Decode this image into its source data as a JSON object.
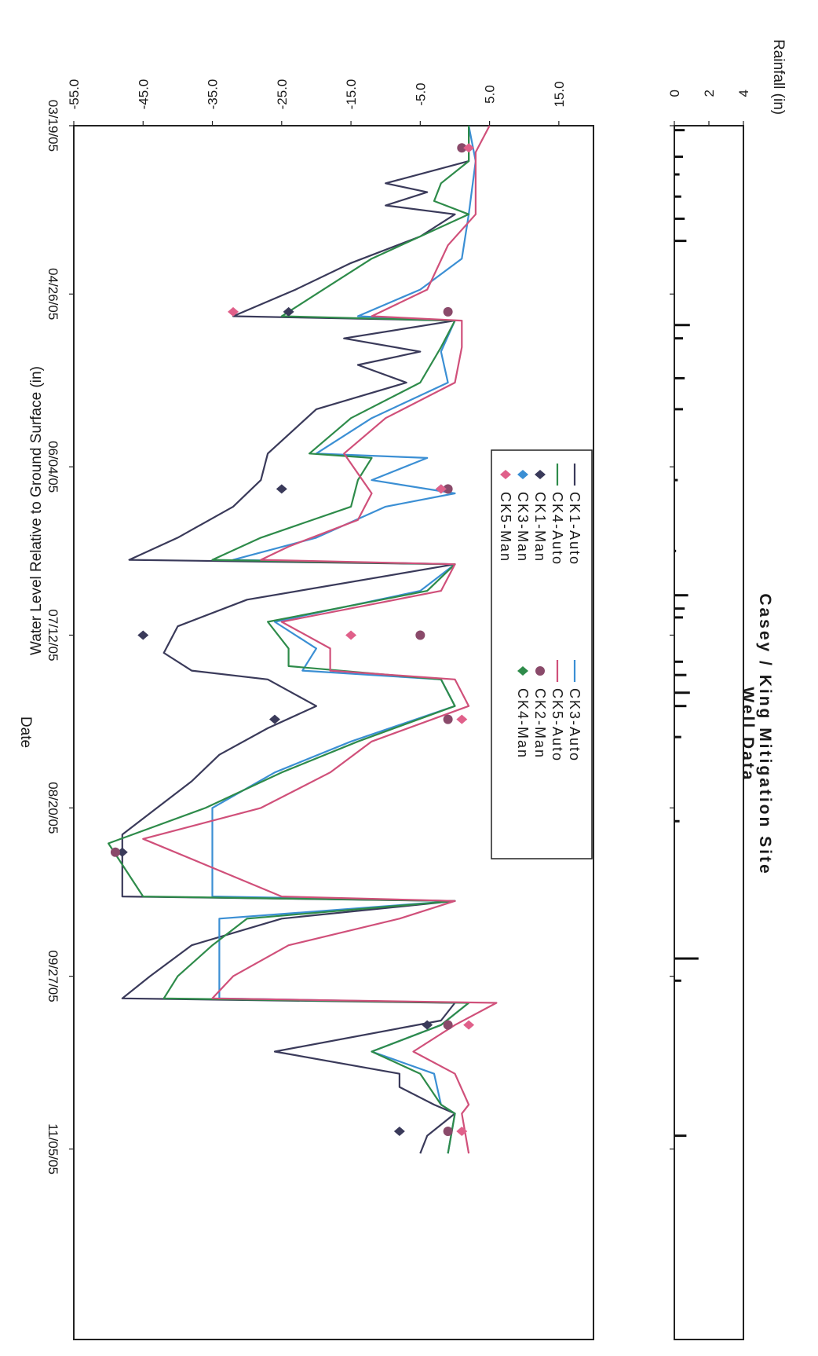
{
  "chart_data": [
    {
      "type": "bar",
      "title": "Casey / King Mitigation Site",
      "subtitle": "Well Data",
      "ylabel": "Rainfall (in)",
      "ylim": [
        0,
        4
      ],
      "yticks": [
        0,
        2,
        4
      ],
      "xlim": [
        "2005-03-19",
        "2005-12-18"
      ],
      "bars": [
        {
          "date": "2005-03-20",
          "value": 0.6
        },
        {
          "date": "2005-03-26",
          "value": 0.5
        },
        {
          "date": "2005-03-30",
          "value": 0.3
        },
        {
          "date": "2005-04-04",
          "value": 0.4
        },
        {
          "date": "2005-04-09",
          "value": 0.6
        },
        {
          "date": "2005-04-14",
          "value": 0.7
        },
        {
          "date": "2005-05-03",
          "value": 0.9
        },
        {
          "date": "2005-05-06",
          "value": 0.5
        },
        {
          "date": "2005-05-15",
          "value": 0.6
        },
        {
          "date": "2005-05-22",
          "value": 0.5
        },
        {
          "date": "2005-06-07",
          "value": 0.2
        },
        {
          "date": "2005-06-23",
          "value": 0.1
        },
        {
          "date": "2005-07-03",
          "value": 0.8
        },
        {
          "date": "2005-07-06",
          "value": 0.6
        },
        {
          "date": "2005-07-08",
          "value": 0.5
        },
        {
          "date": "2005-07-18",
          "value": 0.5
        },
        {
          "date": "2005-07-21",
          "value": 0.7
        },
        {
          "date": "2005-07-25",
          "value": 0.9
        },
        {
          "date": "2005-07-28",
          "value": 0.7
        },
        {
          "date": "2005-08-04",
          "value": 0.4
        },
        {
          "date": "2005-08-23",
          "value": 0.3
        },
        {
          "date": "2005-09-23",
          "value": 1.4
        },
        {
          "date": "2005-09-28",
          "value": 0.4
        },
        {
          "date": "2005-11-02",
          "value": 0.7
        }
      ]
    },
    {
      "type": "line",
      "xlabel": "Date",
      "ylabel": "Water Level Relative to Ground Surface (in)",
      "ylim": [
        -55.0,
        20.0
      ],
      "yticks": [
        "-55.0",
        "-45.0",
        "-35.0",
        "-25.0",
        "-15.0",
        "-5.0",
        "5.0",
        "15.0"
      ],
      "xlim": [
        "2005-03-19",
        "2005-12-18"
      ],
      "xticks": [
        "03/19/05",
        "04/26/05",
        "06/04/05",
        "07/12/05",
        "08/20/05",
        "09/27/05",
        "11/05/05"
      ],
      "legend_position": "center-right",
      "series": [
        {
          "name": "CK1-Auto",
          "color": "#3a3a5a",
          "points": [
            [
              "2005-03-19",
              2
            ],
            [
              "2005-03-27",
              2
            ],
            [
              "2005-04-01",
              -10
            ],
            [
              "2005-04-03",
              -4
            ],
            [
              "2005-04-06",
              -10
            ],
            [
              "2005-04-08",
              0
            ],
            [
              "2005-04-13",
              -5
            ],
            [
              "2005-04-19",
              -15
            ],
            [
              "2005-04-25",
              -23
            ],
            [
              "2005-05-01",
              -32
            ],
            [
              "2005-05-02",
              0
            ],
            [
              "2005-05-06",
              -16
            ],
            [
              "2005-05-09",
              -5
            ],
            [
              "2005-05-12",
              -14
            ],
            [
              "2005-05-16",
              -7
            ],
            [
              "2005-05-22",
              -20
            ],
            [
              "2005-06-01",
              -27
            ],
            [
              "2005-06-07",
              -28
            ],
            [
              "2005-06-13",
              -32
            ],
            [
              "2005-06-20",
              -40
            ],
            [
              "2005-06-25",
              -47
            ],
            [
              "2005-06-26",
              0
            ],
            [
              "2005-07-04",
              -30
            ],
            [
              "2005-07-10",
              -40
            ],
            [
              "2005-07-16",
              -42
            ],
            [
              "2005-07-20",
              -38
            ],
            [
              "2005-07-22",
              -27
            ],
            [
              "2005-07-28",
              -20
            ],
            [
              "2005-08-02",
              -27
            ],
            [
              "2005-08-08",
              -34
            ],
            [
              "2005-08-14",
              -38
            ],
            [
              "2005-08-20",
              -43
            ],
            [
              "2005-08-26",
              -48
            ],
            [
              "2005-09-09",
              -48
            ],
            [
              "2005-09-10",
              0
            ],
            [
              "2005-09-14",
              -25
            ],
            [
              "2005-09-20",
              -38
            ],
            [
              "2005-09-27",
              -44
            ],
            [
              "2005-10-02",
              -48
            ],
            [
              "2005-10-03",
              0
            ],
            [
              "2005-10-07",
              -2
            ],
            [
              "2005-10-14",
              -26
            ],
            [
              "2005-10-19",
              -8
            ],
            [
              "2005-10-22",
              -8
            ],
            [
              "2005-10-26",
              -3
            ],
            [
              "2005-10-28",
              0
            ],
            [
              "2005-11-02",
              -4
            ],
            [
              "2005-11-06",
              -5
            ]
          ]
        },
        {
          "name": "CK3-Auto",
          "color": "#3b8fd4",
          "points": [
            [
              "2005-03-19",
              2
            ],
            [
              "2005-03-27",
              3
            ],
            [
              "2005-04-08",
              2
            ],
            [
              "2005-04-18",
              1
            ],
            [
              "2005-04-25",
              -5
            ],
            [
              "2005-05-01",
              -14
            ],
            [
              "2005-05-02",
              0
            ],
            [
              "2005-05-09",
              -2
            ],
            [
              "2005-05-16",
              -1
            ],
            [
              "2005-05-24",
              -12
            ],
            [
              "2005-06-01",
              -20
            ],
            [
              "2005-06-02",
              -4
            ],
            [
              "2005-06-07",
              -12
            ],
            [
              "2005-06-10",
              0
            ],
            [
              "2005-06-13",
              -10
            ],
            [
              "2005-06-20",
              -20
            ],
            [
              "2005-06-25",
              -32
            ],
            [
              "2005-06-26",
              0
            ],
            [
              "2005-07-02",
              -5
            ],
            [
              "2005-07-09",
              -26
            ],
            [
              "2005-07-15",
              -20
            ],
            [
              "2005-07-20",
              -22
            ],
            [
              "2005-07-22",
              -2
            ],
            [
              "2005-07-28",
              0
            ],
            [
              "2005-08-05",
              -15
            ],
            [
              "2005-08-12",
              -26
            ],
            [
              "2005-08-20",
              -35
            ],
            [
              "2005-09-09",
              -35
            ],
            [
              "2005-09-10",
              0
            ],
            [
              "2005-09-14",
              -34
            ],
            [
              "2005-10-02",
              -34
            ],
            [
              "2005-10-03",
              2
            ],
            [
              "2005-10-08",
              -2
            ],
            [
              "2005-10-14",
              -12
            ],
            [
              "2005-10-19",
              -3
            ],
            [
              "2005-10-26",
              -2
            ],
            [
              "2005-10-28",
              0
            ],
            [
              "2005-11-06",
              -1
            ]
          ]
        },
        {
          "name": "CK4-Auto",
          "color": "#2e8b4a",
          "points": [
            [
              "2005-03-19",
              2
            ],
            [
              "2005-03-27",
              2
            ],
            [
              "2005-04-01",
              -2
            ],
            [
              "2005-04-05",
              -3
            ],
            [
              "2005-04-08",
              2
            ],
            [
              "2005-04-18",
              -12
            ],
            [
              "2005-04-25",
              -19
            ],
            [
              "2005-05-01",
              -25
            ],
            [
              "2005-05-02",
              0
            ],
            [
              "2005-05-08",
              -2
            ],
            [
              "2005-05-16",
              -5
            ],
            [
              "2005-05-24",
              -15
            ],
            [
              "2005-06-01",
              -21
            ],
            [
              "2005-06-02",
              -12
            ],
            [
              "2005-06-07",
              -14
            ],
            [
              "2005-06-13",
              -15
            ],
            [
              "2005-06-20",
              -28
            ],
            [
              "2005-06-25",
              -35
            ],
            [
              "2005-06-26",
              0
            ],
            [
              "2005-07-02",
              -4
            ],
            [
              "2005-07-09",
              -27
            ],
            [
              "2005-07-15",
              -24
            ],
            [
              "2005-07-19",
              -24
            ],
            [
              "2005-07-22",
              -2
            ],
            [
              "2005-07-28",
              0
            ],
            [
              "2005-08-05",
              -14
            ],
            [
              "2005-08-12",
              -25
            ],
            [
              "2005-08-20",
              -36
            ],
            [
              "2005-08-28",
              -50
            ],
            [
              "2005-09-09",
              -45
            ],
            [
              "2005-09-10",
              0
            ],
            [
              "2005-09-14",
              -30
            ],
            [
              "2005-09-20",
              -35
            ],
            [
              "2005-09-27",
              -40
            ],
            [
              "2005-10-02",
              -42
            ],
            [
              "2005-10-03",
              2
            ],
            [
              "2005-10-08",
              -2
            ],
            [
              "2005-10-14",
              -12
            ],
            [
              "2005-10-19",
              -5
            ],
            [
              "2005-10-26",
              -2
            ],
            [
              "2005-10-28",
              0
            ],
            [
              "2005-11-06",
              -1
            ]
          ]
        },
        {
          "name": "CK5-Auto",
          "color": "#d0507a",
          "points": [
            [
              "2005-03-19",
              5
            ],
            [
              "2005-03-25",
              3
            ],
            [
              "2005-04-01",
              3
            ],
            [
              "2005-04-08",
              3
            ],
            [
              "2005-04-15",
              -1
            ],
            [
              "2005-04-25",
              -4
            ],
            [
              "2005-05-01",
              -12
            ],
            [
              "2005-05-02",
              1
            ],
            [
              "2005-05-08",
              1
            ],
            [
              "2005-05-16",
              0
            ],
            [
              "2005-05-24",
              -10
            ],
            [
              "2005-06-01",
              -16
            ],
            [
              "2005-06-10",
              -12
            ],
            [
              "2005-06-16",
              -14
            ],
            [
              "2005-06-22",
              -24
            ],
            [
              "2005-06-25",
              -28
            ],
            [
              "2005-06-26",
              0
            ],
            [
              "2005-07-02",
              -2
            ],
            [
              "2005-07-09",
              -25
            ],
            [
              "2005-07-15",
              -18
            ],
            [
              "2005-07-20",
              -18
            ],
            [
              "2005-07-22",
              0
            ],
            [
              "2005-07-28",
              2
            ],
            [
              "2005-08-05",
              -12
            ],
            [
              "2005-08-12",
              -18
            ],
            [
              "2005-08-20",
              -28
            ],
            [
              "2005-08-27",
              -45
            ],
            [
              "2005-09-09",
              -25
            ],
            [
              "2005-09-10",
              0
            ],
            [
              "2005-09-14",
              -8
            ],
            [
              "2005-09-20",
              -24
            ],
            [
              "2005-09-27",
              -32
            ],
            [
              "2005-10-02",
              -35
            ],
            [
              "2005-10-03",
              6
            ],
            [
              "2005-10-08",
              0
            ],
            [
              "2005-10-14",
              -6
            ],
            [
              "2005-10-19",
              0
            ],
            [
              "2005-10-26",
              2
            ],
            [
              "2005-10-28",
              1
            ],
            [
              "2005-11-06",
              2
            ]
          ]
        }
      ],
      "manual_series": [
        {
          "name": "CK1-Man",
          "color": "#3a3a5a",
          "marker": "diamond",
          "points": [
            [
              "2005-04-30",
              -24
            ],
            [
              "2005-06-09",
              -25
            ],
            [
              "2005-07-12",
              -45
            ],
            [
              "2005-07-31",
              -26
            ],
            [
              "2005-08-30",
              -48
            ],
            [
              "2005-10-08",
              -4
            ],
            [
              "2005-11-01",
              -8
            ]
          ]
        },
        {
          "name": "CK2-Man",
          "color": "#8a4a6a",
          "marker": "circle",
          "points": [
            [
              "2005-03-24",
              1
            ],
            [
              "2005-04-30",
              -1
            ],
            [
              "2005-06-09",
              -1
            ],
            [
              "2005-07-12",
              -5
            ],
            [
              "2005-07-31",
              -1
            ],
            [
              "2005-08-30",
              -49
            ],
            [
              "2005-10-08",
              -1
            ],
            [
              "2005-11-01",
              -1
            ]
          ]
        },
        {
          "name": "CK3-Man",
          "color": "#3b8fd4",
          "marker": "diamond",
          "points": [
            [
              "2005-06-09",
              -2
            ]
          ]
        },
        {
          "name": "CK5-Man",
          "color": "#e0608a",
          "marker": "diamond",
          "points": [
            [
              "2005-03-24",
              2
            ],
            [
              "2005-04-30",
              -32
            ],
            [
              "2005-06-09",
              -2
            ],
            [
              "2005-07-12",
              -15
            ],
            [
              "2005-07-31",
              1
            ],
            [
              "2005-10-08",
              2
            ],
            [
              "2005-11-01",
              1
            ]
          ]
        },
        {
          "name": "CK4-Man",
          "color": "#2e8b4a",
          "marker": "diamond",
          "points": []
        }
      ],
      "legend": [
        {
          "label": "CK1-Auto",
          "kind": "line",
          "color": "#3a3a5a"
        },
        {
          "label": "CK4-Auto",
          "kind": "line",
          "color": "#2e8b4a"
        },
        {
          "label": "CK1-Man",
          "kind": "diamond",
          "color": "#3a3a5a"
        },
        {
          "label": "CK3-Man",
          "kind": "diamond",
          "color": "#3b8fd4"
        },
        {
          "label": "CK5-Man",
          "kind": "diamond",
          "color": "#e0608a"
        },
        {
          "label": "CK3-Auto",
          "kind": "line",
          "color": "#3b8fd4"
        },
        {
          "label": "CK5-Auto",
          "kind": "line",
          "color": "#d0507a"
        },
        {
          "label": "CK2-Man",
          "kind": "circle",
          "color": "#8a4a6a"
        },
        {
          "label": "CK4-Man",
          "kind": "diamond",
          "color": "#2e8b4a"
        }
      ]
    }
  ]
}
